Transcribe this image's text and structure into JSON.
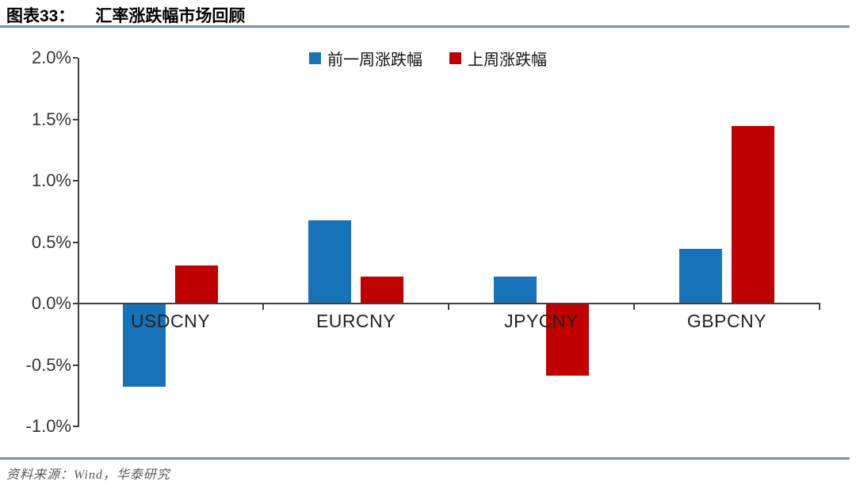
{
  "header": {
    "figure_label": "图表33：",
    "title": "汇率涨跌幅市场回顾"
  },
  "footer": {
    "source": "资料来源：Wind，华泰研究"
  },
  "colors": {
    "prev_week": "#1772B8",
    "last_week": "#C00000",
    "rule": "#7E91AD",
    "axis": "#3f3f3f"
  },
  "chart_data": {
    "type": "bar",
    "title": "汇率涨跌幅市场回顾",
    "categories": [
      "USDCNY",
      "EURCNY",
      "JPYCNY",
      "GBPCNY"
    ],
    "series": [
      {
        "name": "前一周涨跌幅",
        "color_key": "prev_week",
        "values": [
          -0.67,
          0.67,
          0.21,
          0.44
        ]
      },
      {
        "name": "上周涨跌幅",
        "color_key": "last_week",
        "values": [
          0.3,
          0.21,
          -0.58,
          1.44
        ]
      }
    ],
    "y_tick_labels": [
      "2.0%",
      "1.5%",
      "1.0%",
      "0.5%",
      "0.0%",
      "-0.5%",
      "-1.0%"
    ],
    "y_tick_values": [
      2.0,
      1.5,
      1.0,
      0.5,
      0.0,
      -0.5,
      -1.0
    ],
    "ylim": [
      -1.0,
      2.0
    ],
    "xlabel": "",
    "ylabel": "",
    "grid": false,
    "legend_position": "top-center"
  }
}
